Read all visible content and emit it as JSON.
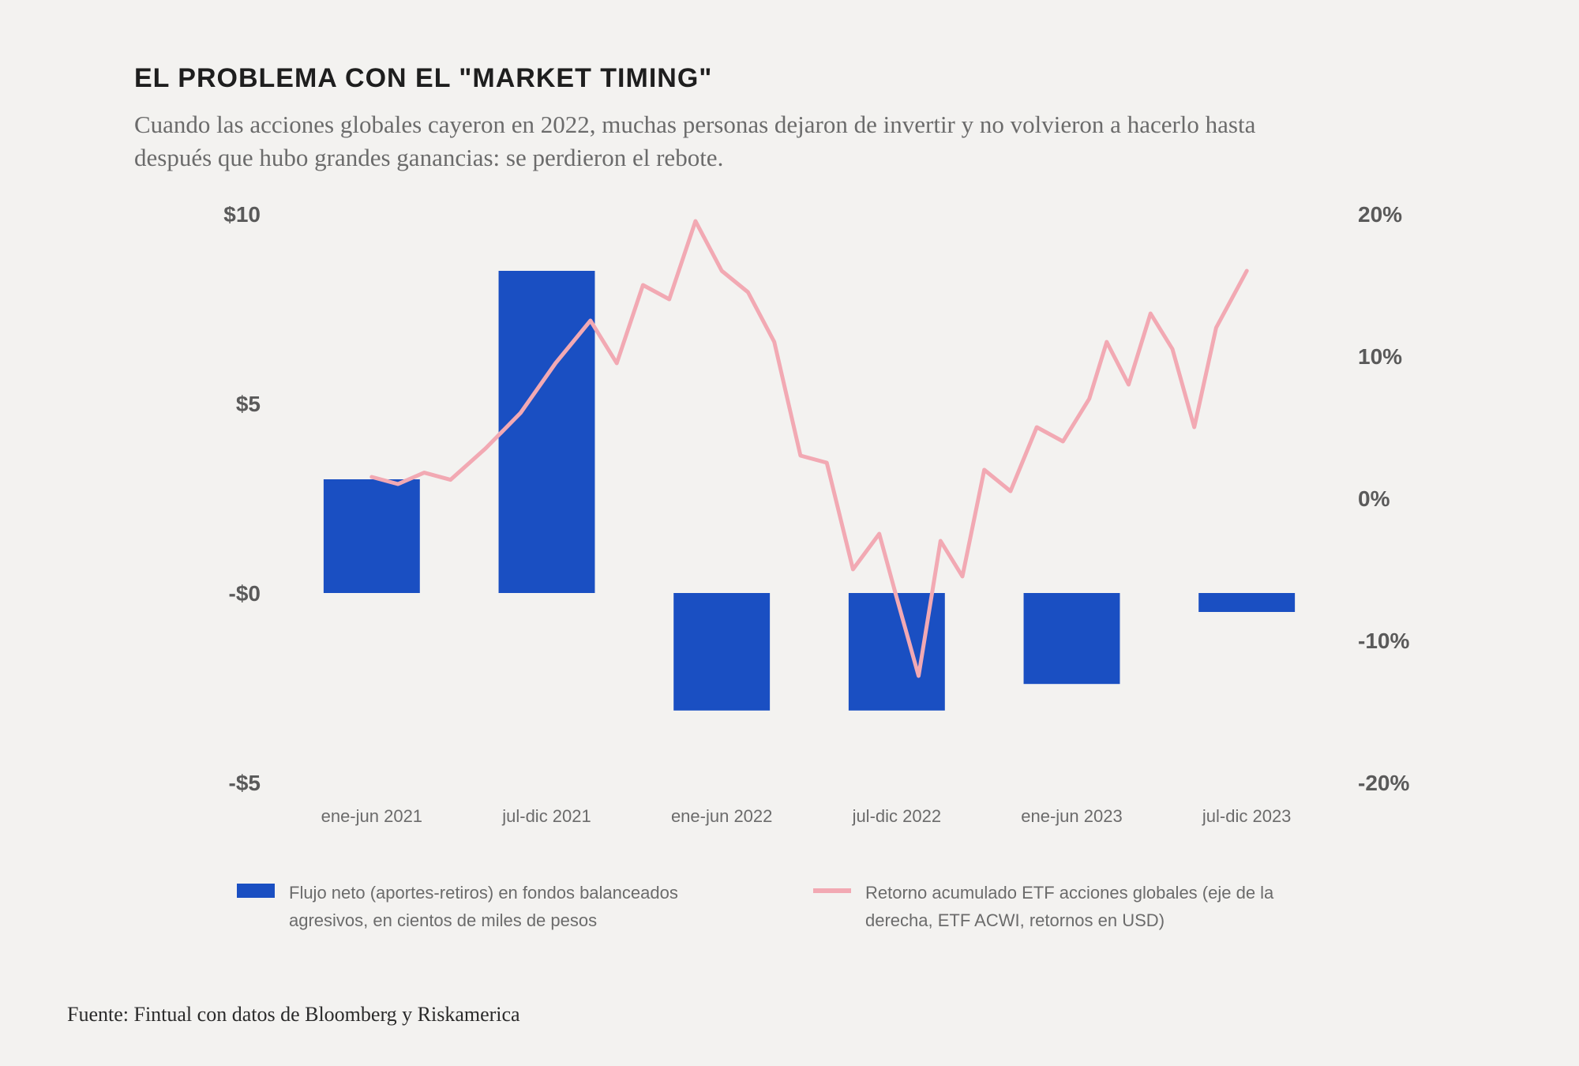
{
  "title": "EL PROBLEMA CON EL \"MARKET TIMING\"",
  "subtitle": "Cuando las acciones globales cayeron en 2022, muchas personas dejaron de invertir y no volvieron a hacerlo hasta después que hubo grandes ganancias: se perdieron el rebote.",
  "source": "Fuente: Fintual con datos de Bloomberg y Riskamerica",
  "chart": {
    "type": "bar+line",
    "background_color": "#f3f2f0",
    "bar_color": "#1a4fc2",
    "line_color": "#f2a9b3",
    "line_width": 5,
    "left_axis": {
      "min": -5,
      "max": 10,
      "ticks": [
        -5,
        0,
        5,
        10
      ],
      "tick_labels": [
        "-$5",
        "-$0",
        "$5",
        "$10"
      ]
    },
    "right_axis": {
      "min": -20,
      "max": 20,
      "ticks": [
        -20,
        -10,
        0,
        10,
        20
      ],
      "tick_labels": [
        "-20%",
        "-10%",
        "0%",
        "10%",
        "20%"
      ]
    },
    "categories": [
      "ene-jun 2021",
      "jul-dic 2021",
      "ene-jun 2022",
      "jul-dic 2022",
      "ene-jun 2023",
      "jul-dic 2023"
    ],
    "bars": [
      3.0,
      8.5,
      -3.1,
      -3.1,
      -2.4,
      -0.5
    ],
    "bar_width_ratio": 0.55,
    "line_points": [
      [
        0.0,
        1.5
      ],
      [
        0.03,
        1.0
      ],
      [
        0.06,
        1.8
      ],
      [
        0.09,
        1.3
      ],
      [
        0.13,
        3.5
      ],
      [
        0.17,
        6.0
      ],
      [
        0.21,
        9.5
      ],
      [
        0.25,
        12.5
      ],
      [
        0.28,
        9.5
      ],
      [
        0.31,
        15.0
      ],
      [
        0.34,
        14.0
      ],
      [
        0.37,
        19.5
      ],
      [
        0.4,
        16.0
      ],
      [
        0.43,
        14.5
      ],
      [
        0.46,
        11.0
      ],
      [
        0.49,
        3.0
      ],
      [
        0.52,
        2.5
      ],
      [
        0.55,
        -5.0
      ],
      [
        0.58,
        -2.5
      ],
      [
        0.6,
        -7.0
      ],
      [
        0.625,
        -12.5
      ],
      [
        0.65,
        -3.0
      ],
      [
        0.675,
        -5.5
      ],
      [
        0.7,
        2.0
      ],
      [
        0.73,
        0.5
      ],
      [
        0.76,
        5.0
      ],
      [
        0.79,
        4.0
      ],
      [
        0.82,
        7.0
      ],
      [
        0.84,
        11.0
      ],
      [
        0.865,
        8.0
      ],
      [
        0.89,
        13.0
      ],
      [
        0.915,
        10.5
      ],
      [
        0.94,
        5.0
      ],
      [
        0.965,
        12.0
      ],
      [
        1.0,
        16.0
      ]
    ],
    "legend": {
      "bar_label": "Flujo neto (aportes-retiros) en fondos balanceados agresivos, en cientos de miles de pesos",
      "line_label": "Retorno acumulado ETF acciones globales (eje de la derecha, ETF ACWI, retornos en USD)"
    },
    "axis_label_fontsize": 28,
    "x_label_fontsize": 22,
    "axis_label_color": "#5a5a5a",
    "x_label_color": "#6b6b6b"
  }
}
